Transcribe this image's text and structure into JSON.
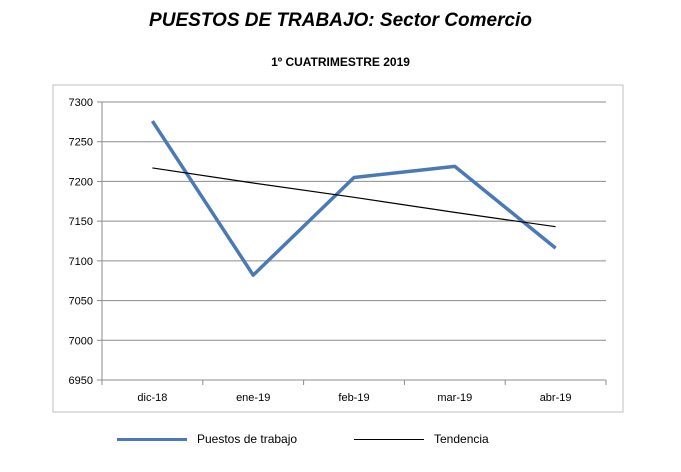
{
  "chart_data": {
    "type": "line",
    "title": "PUESTOS DE TRABAJO: Sector Comercio",
    "subtitle": "1º CUATRIMESTRE 2019",
    "categories": [
      "dic-18",
      "ene-19",
      "feb-19",
      "mar-19",
      "abr-19"
    ],
    "series": [
      {
        "name": "Puestos de trabajo",
        "values": [
          7276,
          7082,
          7205,
          7219,
          7116
        ],
        "color": "#4a7ab5"
      },
      {
        "name": "Tendencia",
        "values": [
          7217,
          7198,
          7180,
          7161,
          7143
        ],
        "color": "#000000"
      }
    ],
    "ylim": [
      6950,
      7300
    ],
    "yticks": [
      6950,
      7000,
      7050,
      7100,
      7150,
      7200,
      7250,
      7300
    ],
    "grid": true,
    "legend": "bottom"
  }
}
